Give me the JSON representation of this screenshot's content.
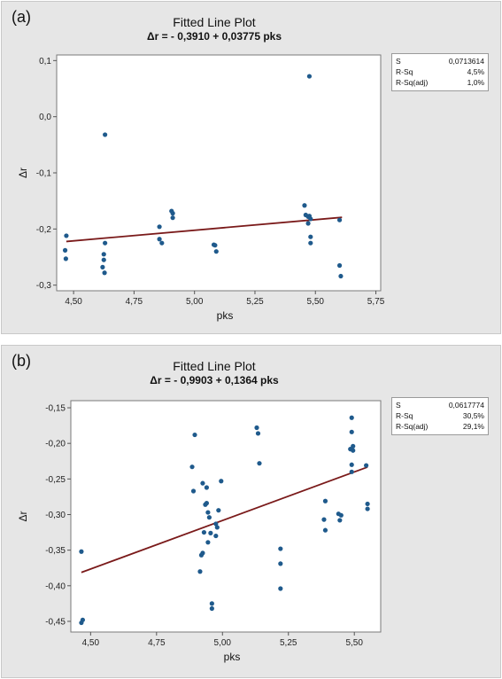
{
  "chart_data": [
    {
      "panel_label": "(a)",
      "type": "scatter",
      "title": "Fitted Line Plot",
      "subtitle": "Δr = - 0,3910 + 0,03775 pks",
      "xlabel": "pks",
      "ylabel": "Δr",
      "xlim": [
        4.43,
        5.77
      ],
      "ylim": [
        -0.31,
        0.11
      ],
      "xticks": [
        4.5,
        4.75,
        5.0,
        5.25,
        5.5,
        5.75
      ],
      "xtick_labels": [
        "4,50",
        "4,75",
        "5,00",
        "5,25",
        "5,50",
        "5,75"
      ],
      "yticks": [
        0.1,
        0.0,
        -0.1,
        -0.2,
        -0.3
      ],
      "ytick_labels": [
        "0,1",
        "0,0",
        "-0,1",
        "-0,2",
        "-0,3"
      ],
      "fit": {
        "intercept": -0.391,
        "slope": 0.03775,
        "x_range": [
          4.47,
          5.61
        ]
      },
      "stats": [
        {
          "key": "S",
          "value": "0,0713614"
        },
        {
          "key": "R-Sq",
          "value": "4,5%"
        },
        {
          "key": "R-Sq(adj)",
          "value": "1,0%"
        }
      ],
      "grid": false,
      "colors": {
        "points": "#1f5a8c",
        "fit_line": "#7a1a1a"
      },
      "points": [
        {
          "x": 4.47,
          "y": -0.212
        },
        {
          "x": 4.465,
          "y": -0.238
        },
        {
          "x": 4.468,
          "y": -0.253
        },
        {
          "x": 4.63,
          "y": -0.032
        },
        {
          "x": 4.63,
          "y": -0.225
        },
        {
          "x": 4.625,
          "y": -0.245
        },
        {
          "x": 4.625,
          "y": -0.255
        },
        {
          "x": 4.62,
          "y": -0.268
        },
        {
          "x": 4.628,
          "y": -0.278
        },
        {
          "x": 4.855,
          "y": -0.196
        },
        {
          "x": 4.855,
          "y": -0.218
        },
        {
          "x": 4.865,
          "y": -0.225
        },
        {
          "x": 4.905,
          "y": -0.168
        },
        {
          "x": 4.91,
          "y": -0.172
        },
        {
          "x": 4.91,
          "y": -0.18
        },
        {
          "x": 5.08,
          "y": -0.228
        },
        {
          "x": 5.085,
          "y": -0.229
        },
        {
          "x": 5.09,
          "y": -0.24
        },
        {
          "x": 5.455,
          "y": -0.158
        },
        {
          "x": 5.46,
          "y": -0.175
        },
        {
          "x": 5.47,
          "y": -0.178
        },
        {
          "x": 5.475,
          "y": -0.177
        },
        {
          "x": 5.48,
          "y": -0.182
        },
        {
          "x": 5.47,
          "y": -0.19
        },
        {
          "x": 5.475,
          "y": 0.072
        },
        {
          "x": 5.48,
          "y": -0.214
        },
        {
          "x": 5.48,
          "y": -0.225
        },
        {
          "x": 5.6,
          "y": -0.184
        },
        {
          "x": 5.6,
          "y": -0.265
        },
        {
          "x": 5.605,
          "y": -0.284
        }
      ]
    },
    {
      "panel_label": "(b)",
      "type": "scatter",
      "title": "Fitted Line Plot",
      "subtitle": "Δr = - 0,9903 + 0,1364 pks",
      "xlabel": "pks",
      "ylabel": "Δr",
      "xlim": [
        4.425,
        5.6
      ],
      "ylim": [
        -0.465,
        -0.14
      ],
      "xticks": [
        4.5,
        4.75,
        5.0,
        5.25,
        5.5
      ],
      "xtick_labels": [
        "4,50",
        "4,75",
        "5,00",
        "5,25",
        "5,50"
      ],
      "yticks": [
        -0.15,
        -0.2,
        -0.25,
        -0.3,
        -0.35,
        -0.4,
        -0.45
      ],
      "ytick_labels": [
        "-0,15",
        "-0,20",
        "-0,25",
        "-0,30",
        "-0,35",
        "-0,40",
        "-0,45"
      ],
      "fit": {
        "intercept": -0.9903,
        "slope": 0.1364,
        "x_range": [
          4.465,
          5.55
        ]
      },
      "stats": [
        {
          "key": "S",
          "value": "0,0617774"
        },
        {
          "key": "R-Sq",
          "value": "30,5%"
        },
        {
          "key": "R-Sq(adj)",
          "value": "29,1%"
        }
      ],
      "grid": false,
      "colors": {
        "points": "#1f5a8c",
        "fit_line": "#7a1a1a"
      },
      "points": [
        {
          "x": 4.465,
          "y": -0.352
        },
        {
          "x": 4.47,
          "y": -0.448
        },
        {
          "x": 4.465,
          "y": -0.452
        },
        {
          "x": 4.885,
          "y": -0.233
        },
        {
          "x": 4.895,
          "y": -0.188
        },
        {
          "x": 4.89,
          "y": -0.267
        },
        {
          "x": 4.915,
          "y": -0.38
        },
        {
          "x": 4.925,
          "y": -0.256
        },
        {
          "x": 4.92,
          "y": -0.357
        },
        {
          "x": 4.925,
          "y": -0.354
        },
        {
          "x": 4.93,
          "y": -0.325
        },
        {
          "x": 4.935,
          "y": -0.286
        },
        {
          "x": 4.94,
          "y": -0.262
        },
        {
          "x": 4.94,
          "y": -0.284
        },
        {
          "x": 4.945,
          "y": -0.297
        },
        {
          "x": 4.95,
          "y": -0.304
        },
        {
          "x": 4.945,
          "y": -0.339
        },
        {
          "x": 4.955,
          "y": -0.326
        },
        {
          "x": 4.96,
          "y": -0.425
        },
        {
          "x": 4.96,
          "y": -0.432
        },
        {
          "x": 4.975,
          "y": -0.313
        },
        {
          "x": 4.975,
          "y": -0.33
        },
        {
          "x": 4.98,
          "y": -0.318
        },
        {
          "x": 4.985,
          "y": -0.294
        },
        {
          "x": 4.995,
          "y": -0.253
        },
        {
          "x": 5.13,
          "y": -0.178
        },
        {
          "x": 5.135,
          "y": -0.186
        },
        {
          "x": 5.14,
          "y": -0.228
        },
        {
          "x": 5.22,
          "y": -0.348
        },
        {
          "x": 5.22,
          "y": -0.369
        },
        {
          "x": 5.22,
          "y": -0.404
        },
        {
          "x": 5.39,
          "y": -0.281
        },
        {
          "x": 5.385,
          "y": -0.307
        },
        {
          "x": 5.39,
          "y": -0.322
        },
        {
          "x": 5.44,
          "y": -0.299
        },
        {
          "x": 5.45,
          "y": -0.301
        },
        {
          "x": 5.445,
          "y": -0.308
        },
        {
          "x": 5.49,
          "y": -0.164
        },
        {
          "x": 5.49,
          "y": -0.184
        },
        {
          "x": 5.495,
          "y": -0.204
        },
        {
          "x": 5.485,
          "y": -0.208
        },
        {
          "x": 5.495,
          "y": -0.21
        },
        {
          "x": 5.49,
          "y": -0.23
        },
        {
          "x": 5.49,
          "y": -0.24
        },
        {
          "x": 5.545,
          "y": -0.231
        },
        {
          "x": 5.55,
          "y": -0.285
        },
        {
          "x": 5.55,
          "y": -0.292
        }
      ]
    }
  ]
}
